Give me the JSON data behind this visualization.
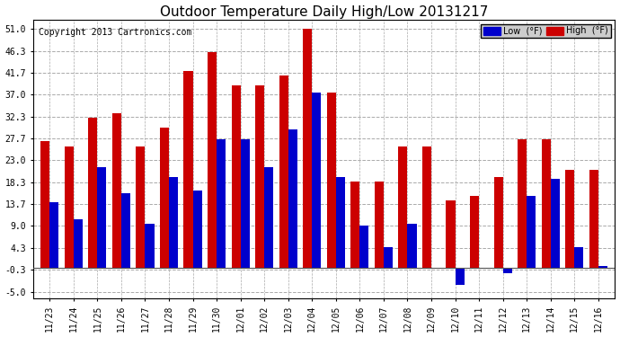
{
  "title": "Outdoor Temperature Daily High/Low 20131217",
  "copyright": "Copyright 2013 Cartronics.com",
  "legend_low": "Low  (°F)",
  "legend_high": "High  (°F)",
  "dates": [
    "11/23",
    "11/24",
    "11/25",
    "11/26",
    "11/27",
    "11/28",
    "11/29",
    "11/30",
    "12/01",
    "12/02",
    "12/03",
    "12/04",
    "12/05",
    "12/06",
    "12/07",
    "12/08",
    "12/09",
    "12/10",
    "12/11",
    "12/12",
    "12/13",
    "12/14",
    "12/15",
    "12/16"
  ],
  "highs": [
    27.0,
    26.0,
    32.0,
    33.0,
    26.0,
    30.0,
    42.0,
    46.0,
    39.0,
    39.0,
    41.0,
    51.0,
    37.5,
    18.5,
    18.5,
    26.0,
    26.0,
    14.5,
    15.5,
    19.5,
    27.5,
    27.5,
    21.0,
    21.0
  ],
  "lows": [
    14.0,
    10.5,
    21.5,
    16.0,
    9.5,
    19.5,
    16.5,
    27.5,
    27.5,
    21.5,
    29.5,
    37.5,
    19.5,
    9.0,
    4.5,
    9.5,
    0.0,
    -3.5,
    0.0,
    -1.0,
    15.5,
    19.0,
    4.5,
    0.5
  ],
  "yticks": [
    -5.0,
    -0.3,
    4.3,
    9.0,
    13.7,
    18.3,
    23.0,
    27.7,
    32.3,
    37.0,
    41.7,
    46.3,
    51.0
  ],
  "ymin": -6.5,
  "ymax": 53.0,
  "bg_color": "#ffffff",
  "bar_width": 0.38,
  "low_color": "#0000cc",
  "high_color": "#cc0000",
  "title_fontsize": 11,
  "tick_fontsize": 7,
  "copyright_fontsize": 7
}
